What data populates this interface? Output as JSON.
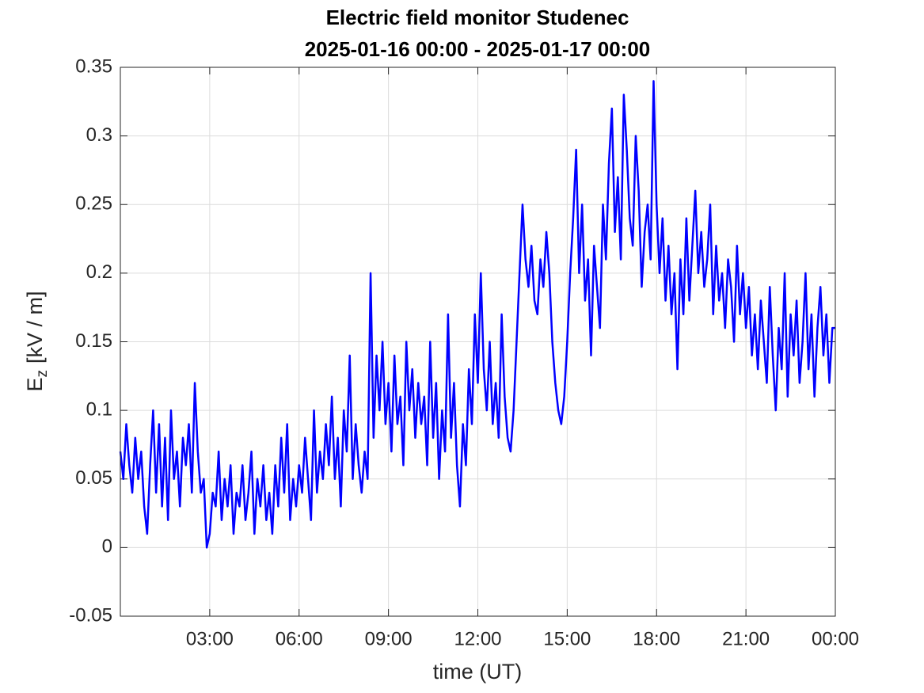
{
  "chart_data": {
    "type": "line",
    "title": [
      "Electric field monitor Studenec",
      "2025-01-16 00:00 - 2025-01-17 00:00"
    ],
    "xlabel": "time (UT)",
    "ylabel": {
      "symbol": "E",
      "subscript": "z",
      "unit": "[kV / m]"
    },
    "xlim": [
      0,
      24
    ],
    "ylim": [
      -0.05,
      0.35
    ],
    "xticks": [
      {
        "value": 3,
        "label": "03:00"
      },
      {
        "value": 6,
        "label": "06:00"
      },
      {
        "value": 9,
        "label": "09:00"
      },
      {
        "value": 12,
        "label": "12:00"
      },
      {
        "value": 15,
        "label": "15:00"
      },
      {
        "value": 18,
        "label": "18:00"
      },
      {
        "value": 21,
        "label": "21:00"
      },
      {
        "value": 24,
        "label": "00:00"
      }
    ],
    "yticks": [
      -0.05,
      0,
      0.05,
      0.1,
      0.15,
      0.2,
      0.25,
      0.3,
      0.35
    ],
    "grid": true,
    "x": [
      0,
      0.1,
      0.2,
      0.3,
      0.4,
      0.5,
      0.6,
      0.7,
      0.8,
      0.9,
      1,
      1.1,
      1.2,
      1.3,
      1.4,
      1.5,
      1.6,
      1.7,
      1.8,
      1.9,
      2,
      2.1,
      2.2,
      2.3,
      2.4,
      2.5,
      2.6,
      2.7,
      2.8,
      2.9,
      3,
      3.1,
      3.2,
      3.3,
      3.4,
      3.5,
      3.6,
      3.7,
      3.8,
      3.9,
      4,
      4.1,
      4.2,
      4.3,
      4.4,
      4.5,
      4.6,
      4.7,
      4.8,
      4.9,
      5,
      5.1,
      5.2,
      5.3,
      5.4,
      5.5,
      5.6,
      5.7,
      5.8,
      5.9,
      6,
      6.1,
      6.2,
      6.3,
      6.4,
      6.5,
      6.6,
      6.7,
      6.8,
      6.9,
      7,
      7.1,
      7.2,
      7.3,
      7.4,
      7.5,
      7.6,
      7.7,
      7.8,
      7.9,
      8,
      8.1,
      8.2,
      8.3,
      8.4,
      8.5,
      8.6,
      8.7,
      8.8,
      8.9,
      9,
      9.1,
      9.2,
      9.3,
      9.4,
      9.5,
      9.6,
      9.7,
      9.8,
      9.9,
      10,
      10.1,
      10.2,
      10.3,
      10.4,
      10.5,
      10.6,
      10.7,
      10.8,
      10.9,
      11,
      11.1,
      11.2,
      11.3,
      11.4,
      11.5,
      11.6,
      11.7,
      11.8,
      11.9,
      12,
      12.1,
      12.2,
      12.3,
      12.4,
      12.5,
      12.6,
      12.7,
      12.8,
      12.9,
      13,
      13.1,
      13.2,
      13.3,
      13.4,
      13.5,
      13.6,
      13.7,
      13.8,
      13.9,
      14,
      14.1,
      14.2,
      14.3,
      14.4,
      14.5,
      14.6,
      14.7,
      14.8,
      14.9,
      15,
      15.1,
      15.2,
      15.3,
      15.4,
      15.5,
      15.6,
      15.7,
      15.8,
      15.9,
      16,
      16.1,
      16.2,
      16.3,
      16.4,
      16.5,
      16.6,
      16.7,
      16.8,
      16.9,
      17,
      17.1,
      17.2,
      17.3,
      17.4,
      17.5,
      17.6,
      17.7,
      17.8,
      17.9,
      18,
      18.1,
      18.2,
      18.3,
      18.4,
      18.5,
      18.6,
      18.7,
      18.8,
      18.9,
      19,
      19.1,
      19.2,
      19.3,
      19.4,
      19.5,
      19.6,
      19.7,
      19.8,
      19.9,
      20,
      20.1,
      20.2,
      20.3,
      20.4,
      20.5,
      20.6,
      20.7,
      20.8,
      20.9,
      21,
      21.1,
      21.2,
      21.3,
      21.4,
      21.5,
      21.6,
      21.7,
      21.8,
      21.9,
      22,
      22.1,
      22.2,
      22.3,
      22.4,
      22.5,
      22.6,
      22.7,
      22.8,
      22.9,
      23,
      23.1,
      23.2,
      23.3,
      23.4,
      23.5,
      23.6,
      23.7,
      23.8,
      23.9,
      24
    ],
    "series": [
      {
        "color": "#0000ff",
        "values": [
          0.07,
          0.05,
          0.09,
          0.06,
          0.04,
          0.08,
          0.05,
          0.07,
          0.03,
          0.01,
          0.06,
          0.1,
          0.04,
          0.09,
          0.03,
          0.08,
          0.02,
          0.1,
          0.05,
          0.07,
          0.03,
          0.08,
          0.06,
          0.09,
          0.04,
          0.12,
          0.07,
          0.04,
          0.05,
          0.0,
          0.01,
          0.04,
          0.03,
          0.07,
          0.02,
          0.05,
          0.03,
          0.06,
          0.01,
          0.04,
          0.03,
          0.06,
          0.02,
          0.04,
          0.07,
          0.01,
          0.05,
          0.03,
          0.06,
          0.02,
          0.04,
          0.01,
          0.06,
          0.03,
          0.08,
          0.04,
          0.09,
          0.02,
          0.05,
          0.03,
          0.06,
          0.04,
          0.08,
          0.05,
          0.02,
          0.1,
          0.04,
          0.07,
          0.05,
          0.09,
          0.06,
          0.11,
          0.05,
          0.08,
          0.03,
          0.1,
          0.07,
          0.14,
          0.05,
          0.09,
          0.06,
          0.04,
          0.07,
          0.05,
          0.2,
          0.08,
          0.14,
          0.1,
          0.15,
          0.09,
          0.12,
          0.07,
          0.14,
          0.09,
          0.11,
          0.06,
          0.15,
          0.1,
          0.13,
          0.08,
          0.12,
          0.09,
          0.11,
          0.06,
          0.15,
          0.08,
          0.12,
          0.05,
          0.1,
          0.07,
          0.17,
          0.08,
          0.12,
          0.06,
          0.03,
          0.09,
          0.06,
          0.13,
          0.09,
          0.17,
          0.12,
          0.2,
          0.13,
          0.1,
          0.15,
          0.09,
          0.12,
          0.08,
          0.17,
          0.11,
          0.08,
          0.07,
          0.1,
          0.15,
          0.2,
          0.25,
          0.21,
          0.19,
          0.22,
          0.18,
          0.17,
          0.21,
          0.19,
          0.23,
          0.2,
          0.15,
          0.12,
          0.1,
          0.09,
          0.11,
          0.15,
          0.2,
          0.24,
          0.29,
          0.2,
          0.25,
          0.18,
          0.21,
          0.14,
          0.22,
          0.19,
          0.16,
          0.25,
          0.21,
          0.28,
          0.32,
          0.23,
          0.27,
          0.21,
          0.33,
          0.29,
          0.24,
          0.22,
          0.3,
          0.26,
          0.19,
          0.23,
          0.25,
          0.21,
          0.34,
          0.25,
          0.2,
          0.24,
          0.18,
          0.22,
          0.17,
          0.2,
          0.13,
          0.21,
          0.17,
          0.24,
          0.18,
          0.22,
          0.26,
          0.2,
          0.23,
          0.19,
          0.21,
          0.25,
          0.17,
          0.22,
          0.18,
          0.2,
          0.16,
          0.21,
          0.19,
          0.15,
          0.22,
          0.17,
          0.2,
          0.16,
          0.19,
          0.14,
          0.17,
          0.13,
          0.18,
          0.15,
          0.12,
          0.19,
          0.14,
          0.1,
          0.16,
          0.13,
          0.2,
          0.11,
          0.17,
          0.14,
          0.18,
          0.12,
          0.15,
          0.2,
          0.13,
          0.17,
          0.11,
          0.16,
          0.19,
          0.14,
          0.17,
          0.12,
          0.16,
          0.16
        ]
      }
    ]
  }
}
